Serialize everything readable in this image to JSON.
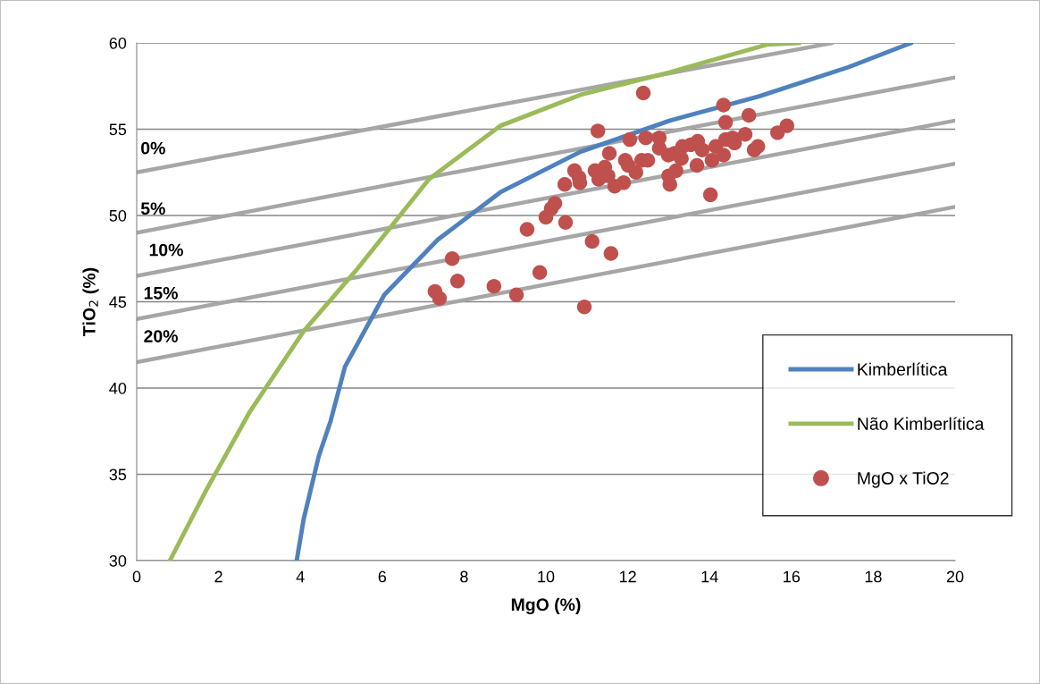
{
  "chart_data": {
    "type": "scatter",
    "xlabel": "MgO (%)",
    "ylabel": "TiO$_{2}$ (%)",
    "xlim": [
      0,
      20
    ],
    "ylim": [
      30,
      60
    ],
    "xticks": [
      0,
      2,
      4,
      6,
      8,
      10,
      12,
      14,
      16,
      18,
      20
    ],
    "yticks": [
      30,
      35,
      40,
      45,
      50,
      55,
      60
    ],
    "grid": "y",
    "legend": "bottom right",
    "marker": "circle",
    "series": [
      {
        "type": "line",
        "marker": "none",
        "color": "#a6a6a6",
        "x": [
          0,
          17
        ],
        "values": [
          52.5,
          60
        ]
      },
      {
        "type": "line",
        "marker": "none",
        "color": "#a6a6a6",
        "x": [
          0,
          20
        ],
        "values": [
          49,
          58
        ]
      },
      {
        "type": "line",
        "marker": "none",
        "color": "#a6a6a6",
        "x": [
          0,
          20
        ],
        "values": [
          46.5,
          55.5
        ]
      },
      {
        "type": "line",
        "marker": "none",
        "color": "#a6a6a6",
        "x": [
          0,
          20
        ],
        "values": [
          44,
          53
        ]
      },
      {
        "type": "line",
        "marker": "none",
        "color": "#a6a6a6",
        "x": [
          0,
          20
        ],
        "values": [
          41.5,
          50.5
        ]
      },
      {
        "type": "line",
        "marker": "none",
        "name": "Kimberlítica",
        "color": "#4f81bd",
        "x": [
          3.91,
          4.08,
          4.45,
          4.74,
          5.09,
          6.05,
          7.36,
          8.89,
          10.85,
          13.03,
          15.2,
          17.4,
          18.93
        ],
        "values": [
          30,
          32.4,
          36.06,
          38.1,
          41.24,
          45.4,
          48.6,
          51.35,
          53.7,
          55.5,
          56.9,
          58.6,
          60
        ]
      },
      {
        "type": "line",
        "marker": "none",
        "name": "Não Kimberlítica",
        "color": "#9bbb59",
        "x": [
          0.81,
          1.68,
          2.77,
          4.08,
          5.39,
          7.14,
          8.89,
          10.85,
          13.03,
          15.4,
          16.2
        ],
        "values": [
          30,
          34,
          38.65,
          43.3,
          46.9,
          52.1,
          55.2,
          57.0,
          58.3,
          59.9,
          60
        ]
      },
      {
        "name": "MgO x TiO2",
        "color": "#c0504d",
        "x": [
          7.29,
          7.4,
          7.71,
          7.84,
          8.73,
          9.28,
          9.54,
          9.85,
          10.0,
          10.13,
          10.22,
          10.48,
          10.46,
          10.7,
          10.81,
          10.83,
          10.94,
          11.13,
          11.2,
          11.27,
          11.29,
          11.44,
          11.52,
          11.55,
          11.59,
          11.68,
          11.9,
          11.94,
          12.01,
          12.05,
          12.2,
          12.34,
          12.38,
          12.44,
          12.49,
          12.77,
          12.77,
          12.99,
          13.0,
          13.03,
          13.14,
          13.18,
          13.31,
          13.34,
          13.54,
          13.69,
          13.71,
          13.82,
          14.02,
          14.06,
          14.15,
          14.34,
          14.39,
          14.34,
          14.39,
          14.56,
          14.61,
          14.87,
          14.96,
          15.09,
          15.18,
          15.66,
          15.89
        ],
        "values": [
          45.6,
          45.2,
          47.5,
          46.2,
          45.9,
          45.4,
          49.2,
          46.7,
          49.9,
          50.4,
          50.7,
          49.6,
          51.8,
          52.6,
          52.2,
          51.9,
          44.7,
          48.5,
          52.6,
          54.9,
          52.1,
          52.8,
          52.3,
          53.6,
          47.8,
          51.7,
          51.9,
          53.2,
          52.9,
          54.4,
          52.5,
          53.2,
          57.1,
          54.5,
          53.2,
          54.5,
          53.9,
          53.5,
          52.3,
          51.8,
          53.6,
          52.6,
          53.3,
          54.0,
          54.1,
          52.9,
          54.3,
          53.8,
          51.2,
          53.2,
          54.0,
          56.4,
          55.4,
          53.5,
          54.4,
          54.5,
          54.2,
          54.7,
          55.8,
          53.8,
          54.0,
          54.8,
          55.2
        ]
      }
    ],
    "annotations": [
      {
        "text": "0%",
        "x": 0.4,
        "y": 52.7
      },
      {
        "text": "5%",
        "x": 0.4,
        "y": 49.2
      },
      {
        "text": "10%",
        "x": 0.72,
        "y": 46.8
      },
      {
        "text": "15%",
        "x": 0.59,
        "y": 44.3
      },
      {
        "text": "20%",
        "x": 0.59,
        "y": 41.8
      }
    ]
  }
}
